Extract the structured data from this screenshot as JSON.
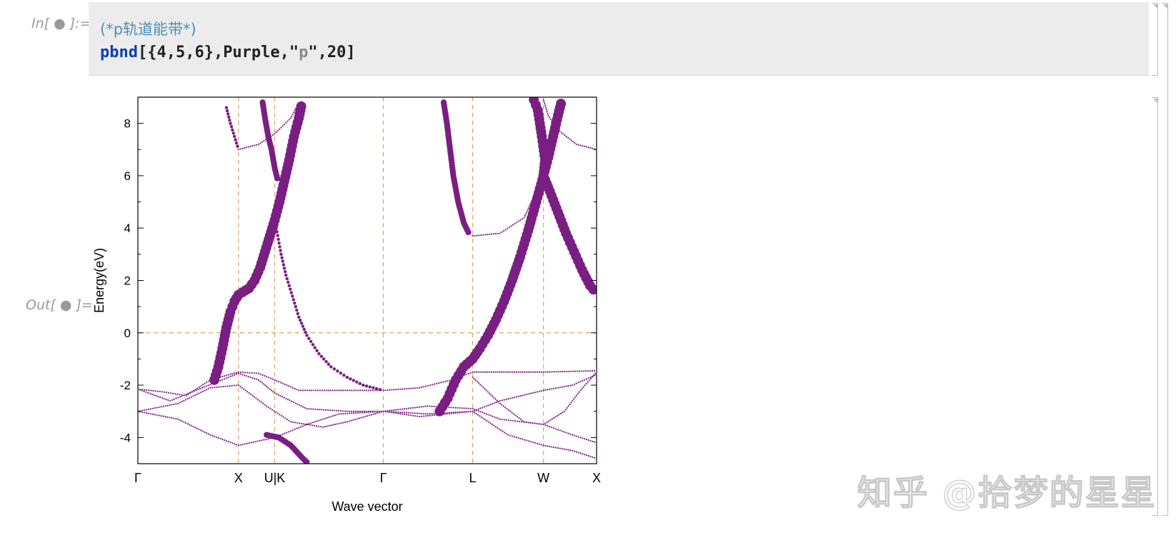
{
  "input_label": "In[ ● ]:=",
  "output_label": "Out[ ● ]=",
  "code": {
    "comment": "(*p轨道能带*)",
    "function": "pbnd",
    "args_before_string": "[{4,5,6},Purple,\"",
    "string": "p",
    "args_after_string": "\",20]"
  },
  "watermark": "知乎 @拾梦的星星",
  "colors": {
    "band": "#7a1f82",
    "guide": "#e0a060",
    "frame": "#000000"
  },
  "chart_data": {
    "type": "scatter",
    "title": "",
    "xlabel": "Wave vector",
    "ylabel": "Energy(eV)",
    "ylim": [
      -5,
      9
    ],
    "xlim": [
      0,
      5.7
    ],
    "yticks": [
      -4,
      -2,
      0,
      2,
      4,
      6,
      8
    ],
    "kpoints": [
      {
        "label": "Γ",
        "x": 0
      },
      {
        "label": "X",
        "x": 1.25
      },
      {
        "label": "U|K",
        "x": 1.7
      },
      {
        "label": "Γ",
        "x": 3.05
      },
      {
        "label": "L",
        "x": 4.16
      },
      {
        "label": "W",
        "x": 5.04
      },
      {
        "label": "X",
        "x": 5.7
      }
    ],
    "fermi_level": 0,
    "grid": "dashed at high-symmetry points and E=0",
    "series": [
      {
        "width_scale": "strong p",
        "points": [
          [
            0.95,
            -1.8
          ],
          [
            1.0,
            -1.3
          ],
          [
            1.05,
            -0.6
          ],
          [
            1.1,
            0.2
          ],
          [
            1.15,
            0.8
          ],
          [
            1.2,
            1.2
          ],
          [
            1.25,
            1.45
          ],
          [
            1.3,
            1.55
          ],
          [
            1.38,
            1.7
          ],
          [
            1.45,
            2.0
          ],
          [
            1.52,
            2.5
          ],
          [
            1.58,
            3.1
          ],
          [
            1.64,
            3.7
          ],
          [
            1.7,
            4.3
          ],
          [
            1.76,
            5.0
          ],
          [
            1.82,
            5.8
          ],
          [
            1.88,
            6.6
          ],
          [
            1.94,
            7.5
          ],
          [
            2.0,
            8.2
          ],
          [
            2.04,
            8.8
          ]
        ]
      },
      {
        "width_scale": "medium p",
        "points": [
          [
            1.55,
            8.8
          ],
          [
            1.58,
            8.2
          ],
          [
            1.62,
            7.5
          ],
          [
            1.66,
            7.0
          ],
          [
            1.7,
            6.3
          ],
          [
            1.74,
            5.8
          ]
        ]
      },
      {
        "width_scale": "weak p",
        "points": [
          [
            1.72,
            4.0
          ],
          [
            1.78,
            3.0
          ],
          [
            1.84,
            2.2
          ],
          [
            1.92,
            1.4
          ],
          [
            2.0,
            0.6
          ],
          [
            2.1,
            -0.1
          ],
          [
            2.25,
            -0.8
          ],
          [
            2.4,
            -1.3
          ],
          [
            2.6,
            -1.7
          ],
          [
            2.8,
            -2.0
          ],
          [
            3.05,
            -2.2
          ]
        ]
      },
      {
        "width_scale": "weak p",
        "points": [
          [
            1.1,
            8.6
          ],
          [
            1.15,
            8.0
          ],
          [
            1.2,
            7.5
          ],
          [
            1.25,
            7.0
          ]
        ]
      },
      {
        "width_scale": "medium p",
        "points": [
          [
            3.8,
            8.8
          ],
          [
            3.84,
            8.0
          ],
          [
            3.88,
            7.0
          ],
          [
            3.92,
            6.0
          ],
          [
            3.98,
            5.0
          ],
          [
            4.05,
            4.2
          ],
          [
            4.12,
            3.75
          ]
        ]
      },
      {
        "width_scale": "strong p",
        "points": [
          [
            3.75,
            -3.0
          ],
          [
            3.85,
            -2.5
          ],
          [
            3.95,
            -1.8
          ],
          [
            4.05,
            -1.3
          ],
          [
            4.16,
            -1.0
          ],
          [
            4.25,
            -0.6
          ],
          [
            4.35,
            -0.1
          ],
          [
            4.45,
            0.5
          ],
          [
            4.55,
            1.2
          ],
          [
            4.65,
            2.0
          ],
          [
            4.75,
            2.9
          ],
          [
            4.85,
            3.9
          ],
          [
            4.95,
            5.0
          ],
          [
            5.04,
            6.0
          ],
          [
            5.1,
            6.7
          ],
          [
            5.16,
            7.5
          ],
          [
            5.22,
            8.3
          ],
          [
            5.27,
            8.9
          ]
        ]
      },
      {
        "width_scale": "strong p",
        "points": [
          [
            4.92,
            8.9
          ],
          [
            4.97,
            8.5
          ],
          [
            5.02,
            7.5
          ],
          [
            5.06,
            6.6
          ],
          [
            5.04,
            6.0
          ],
          [
            5.12,
            5.4
          ],
          [
            5.22,
            4.6
          ],
          [
            5.32,
            3.8
          ],
          [
            5.42,
            3.1
          ],
          [
            5.52,
            2.4
          ],
          [
            5.62,
            1.8
          ],
          [
            5.7,
            1.5
          ]
        ]
      },
      {
        "width_scale": "thin",
        "points": [
          [
            0,
            -2.15
          ],
          [
            0.3,
            -2.25
          ],
          [
            0.6,
            -2.4
          ],
          [
            0.9,
            -1.8
          ],
          [
            1.25,
            -1.5
          ],
          [
            1.5,
            -1.55
          ],
          [
            1.7,
            -1.8
          ],
          [
            2.0,
            -2.2
          ],
          [
            2.5,
            -2.2
          ],
          [
            3.05,
            -2.2
          ],
          [
            3.5,
            -2.1
          ],
          [
            3.9,
            -1.8
          ],
          [
            4.16,
            -1.5
          ],
          [
            4.6,
            -1.5
          ],
          [
            5.04,
            -1.5
          ],
          [
            5.7,
            -1.45
          ]
        ]
      },
      {
        "width_scale": "thin",
        "points": [
          [
            0,
            -2.15
          ],
          [
            0.4,
            -2.6
          ],
          [
            0.8,
            -2.1
          ],
          [
            1.25,
            -1.55
          ],
          [
            1.5,
            -1.8
          ],
          [
            1.7,
            -2.3
          ],
          [
            2.1,
            -2.9
          ],
          [
            2.6,
            -3.0
          ],
          [
            3.05,
            -3.0
          ],
          [
            3.6,
            -2.8
          ],
          [
            4.16,
            -2.9
          ],
          [
            4.5,
            -3.3
          ],
          [
            5.04,
            -3.5
          ],
          [
            5.4,
            -3.9
          ],
          [
            5.7,
            -4.2
          ]
        ]
      },
      {
        "width_scale": "thin",
        "points": [
          [
            0,
            -3.0
          ],
          [
            0.5,
            -2.7
          ],
          [
            0.9,
            -2.1
          ],
          [
            1.25,
            -2.0
          ],
          [
            1.6,
            -2.8
          ],
          [
            1.9,
            -3.4
          ],
          [
            2.3,
            -3.6
          ],
          [
            2.6,
            -3.4
          ],
          [
            3.05,
            -3.0
          ],
          [
            3.5,
            -3.2
          ],
          [
            4.16,
            -3.0
          ],
          [
            4.5,
            -2.6
          ],
          [
            5.04,
            -2.2
          ],
          [
            5.4,
            -2.0
          ],
          [
            5.7,
            -1.6
          ]
        ]
      },
      {
        "width_scale": "thin",
        "points": [
          [
            0,
            -3.0
          ],
          [
            0.5,
            -3.3
          ],
          [
            0.9,
            -3.9
          ],
          [
            1.25,
            -4.3
          ],
          [
            1.7,
            -4.0
          ],
          [
            2.1,
            -3.5
          ],
          [
            2.5,
            -3.1
          ],
          [
            3.05,
            -3.0
          ],
          [
            3.6,
            -3.1
          ],
          [
            4.16,
            -3.0
          ],
          [
            4.6,
            -3.9
          ],
          [
            5.04,
            -4.3
          ],
          [
            5.4,
            -4.5
          ],
          [
            5.7,
            -4.8
          ]
        ]
      },
      {
        "width_scale": "thin",
        "points": [
          [
            4.16,
            -1.7
          ],
          [
            4.5,
            -2.7
          ],
          [
            4.8,
            -3.4
          ],
          [
            5.04,
            -3.5
          ],
          [
            5.3,
            -3.0
          ],
          [
            5.5,
            -2.2
          ],
          [
            5.7,
            -1.5
          ]
        ]
      },
      {
        "width_scale": "thin",
        "points": [
          [
            4.16,
            3.7
          ],
          [
            4.5,
            3.8
          ],
          [
            4.8,
            4.4
          ],
          [
            5.04,
            6.0
          ]
        ]
      },
      {
        "width_scale": "thin",
        "points": [
          [
            5.04,
            8.9
          ],
          [
            5.1,
            8.3
          ],
          [
            5.2,
            7.8
          ],
          [
            5.45,
            7.2
          ],
          [
            5.7,
            7.0
          ]
        ]
      },
      {
        "width_scale": "thin",
        "points": [
          [
            1.25,
            7.0
          ],
          [
            1.5,
            7.2
          ],
          [
            1.7,
            7.6
          ],
          [
            1.9,
            8.2
          ],
          [
            2.0,
            8.8
          ]
        ]
      },
      {
        "width_scale": "medium p",
        "points": [
          [
            1.6,
            -3.9
          ],
          [
            1.75,
            -4.0
          ],
          [
            1.9,
            -4.3
          ],
          [
            2.05,
            -4.8
          ],
          [
            2.12,
            -5.0
          ]
        ]
      }
    ]
  }
}
